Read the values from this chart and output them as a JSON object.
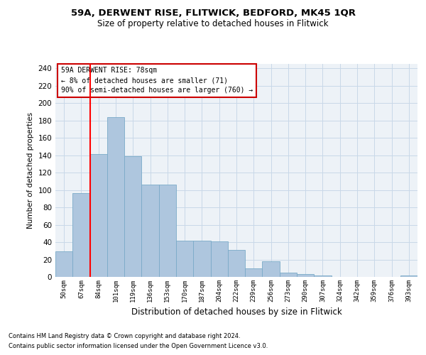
{
  "title1": "59A, DERWENT RISE, FLITWICK, BEDFORD, MK45 1QR",
  "title2": "Size of property relative to detached houses in Flitwick",
  "xlabel": "Distribution of detached houses by size in Flitwick",
  "ylabel": "Number of detached properties",
  "categories": [
    "50sqm",
    "67sqm",
    "84sqm",
    "101sqm",
    "119sqm",
    "136sqm",
    "153sqm",
    "170sqm",
    "187sqm",
    "204sqm",
    "222sqm",
    "239sqm",
    "256sqm",
    "273sqm",
    "290sqm",
    "307sqm",
    "324sqm",
    "342sqm",
    "359sqm",
    "376sqm",
    "393sqm"
  ],
  "values": [
    29,
    96,
    141,
    184,
    139,
    106,
    106,
    42,
    42,
    41,
    31,
    10,
    18,
    5,
    3,
    2,
    0,
    0,
    0,
    0,
    2
  ],
  "bar_color": "#aec6de",
  "bar_edge_color": "#7aaac8",
  "red_line_x": 1.5,
  "annotation_title": "59A DERWENT RISE: 78sqm",
  "annotation_line1": "← 8% of detached houses are smaller (71)",
  "annotation_line2": "90% of semi-detached houses are larger (760) →",
  "annotation_box_color": "#ffffff",
  "annotation_box_edge": "#cc0000",
  "footnote1": "Contains HM Land Registry data © Crown copyright and database right 2024.",
  "footnote2": "Contains public sector information licensed under the Open Government Licence v3.0.",
  "ylim": [
    0,
    245
  ],
  "yticks": [
    0,
    20,
    40,
    60,
    80,
    100,
    120,
    140,
    160,
    180,
    200,
    220,
    240
  ],
  "grid_color": "#c8d8e8",
  "background_color": "#edf2f7",
  "title1_fontsize": 9.5,
  "title2_fontsize": 8.5
}
